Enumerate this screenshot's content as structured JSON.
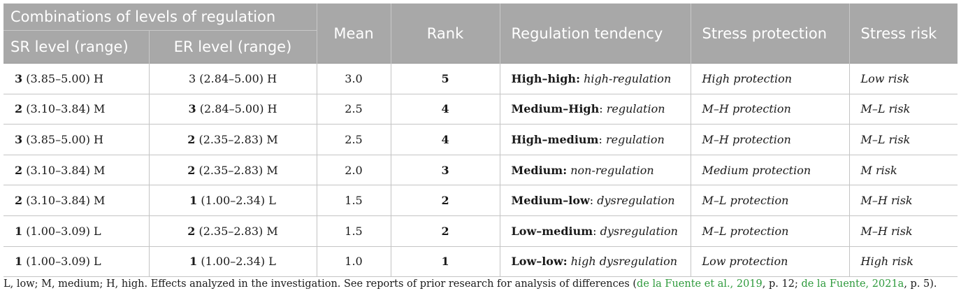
{
  "header": {
    "group": "Combinations of levels of regulation",
    "sr": "SR level (range)",
    "er": "ER level (range)",
    "mean": "Mean",
    "rank": "Rank",
    "tendency": "Regulation tendency",
    "protection": "Stress protection",
    "risk": "Stress risk"
  },
  "rows": [
    {
      "sr_level": "3",
      "sr_range": " (3.85–5.00) H",
      "er_level": "",
      "er_range": "3 (2.84–5.00) H",
      "mean": "3.0",
      "rank": "5",
      "tendency_bold": "High–high:",
      "tendency_plain": " ",
      "tendency_italic": "high-regulation",
      "protection": "High protection",
      "risk": "Low risk"
    },
    {
      "sr_level": "2",
      "sr_range": " (3.10–3.84) M",
      "er_level": "3",
      "er_range": " (2.84–5.00) H",
      "mean": "2.5",
      "rank": "4",
      "tendency_bold": "Medium–High",
      "tendency_plain": ": ",
      "tendency_italic": "regulation",
      "protection": "M–H protection",
      "risk": "M–L risk"
    },
    {
      "sr_level": "3",
      "sr_range": " (3.85–5.00) H",
      "er_level": "2",
      "er_range": " (2.35–2.83) M",
      "mean": "2.5",
      "rank": "4",
      "tendency_bold": "High–medium",
      "tendency_plain": ": ",
      "tendency_italic": "regulation",
      "protection": "M–H protection",
      "risk": "M–L risk"
    },
    {
      "sr_level": "2",
      "sr_range": " (3.10–3.84) M",
      "er_level": "2",
      "er_range": " (2.35–2.83) M",
      "mean": "2.0",
      "rank": "3",
      "tendency_bold": "Medium:",
      "tendency_plain": " ",
      "tendency_italic": "non-regulation",
      "protection": "Medium protection",
      "risk": "M risk"
    },
    {
      "sr_level": "2",
      "sr_range": " (3.10–3.84) M",
      "er_level": "1",
      "er_range": " (1.00–2.34) L",
      "mean": "1.5",
      "rank": "2",
      "tendency_bold": "Medium–low",
      "tendency_plain": ": ",
      "tendency_italic": "dysregulation",
      "protection": "M–L protection",
      "risk": "M–H risk"
    },
    {
      "sr_level": "1",
      "sr_range": " (1.00–3.09) L",
      "er_level": "2",
      "er_range": " (2.35–2.83) M",
      "mean": "1.5",
      "rank": "2",
      "tendency_bold": "Low–medium",
      "tendency_plain": ": ",
      "tendency_italic": "dysregulation",
      "protection": "M–L protection",
      "risk": "M–H risk"
    },
    {
      "sr_level": "1",
      "sr_range": " (1.00–3.09) L",
      "er_level": "1",
      "er_range": " (1.00–2.34) L",
      "mean": "1.0",
      "rank": "1",
      "tendency_bold": "Low–low:",
      "tendency_plain": " ",
      "tendency_italic": "high dysregulation",
      "protection": "Low protection",
      "risk": "High risk"
    }
  ],
  "footnote": {
    "text1": "L, low; M, medium; H, high. Effects analyzed in the investigation. See reports of prior research for analysis of differences (",
    "link1": "de la Fuente et al., 2019",
    "text2": ", p. 12; ",
    "link2": "de la Fuente, 2021a",
    "text3": ", p. 5)."
  }
}
